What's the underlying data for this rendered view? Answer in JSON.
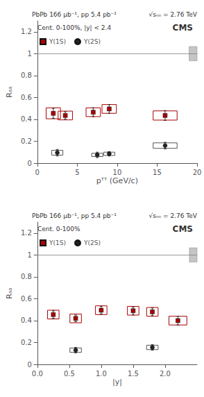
{
  "chart_data": [
    {
      "type": "scatter",
      "annotations": [
        "PbPb 166 μb⁻¹, pp 5.4 pb⁻¹",
        "√sₙₙ = 2.76 TeV",
        "CMS",
        "Cent. 0-100%, |y| < 2.4"
      ],
      "xlabel": "pᵀᵀ (GeV/c)",
      "ylabel": "Rₐₐ",
      "xlim": [
        0,
        20
      ],
      "ylim": [
        0,
        1.3
      ],
      "xticks": [
        0,
        5,
        10,
        15,
        20
      ],
      "yticks": [
        0,
        0.2,
        0.4,
        0.6,
        0.8,
        1,
        1.2
      ],
      "grid": false,
      "legend": "upper left",
      "hline": 1.0,
      "gray_box": {
        "x": 19.0,
        "y": 0.935,
        "width": 1.0,
        "height": 0.13
      },
      "series": [
        {
          "name": "Υ(1S)",
          "color": "#aa0000",
          "marker": "square",
          "x": [
            2.0,
            3.5,
            7.0,
            9.0,
            16.0
          ],
          "values": [
            0.455,
            0.435,
            0.465,
            0.495,
            0.435
          ],
          "yerr": [
            0.045,
            0.035,
            0.04,
            0.04,
            0.045
          ],
          "box_half_width": [
            0.9,
            0.9,
            0.9,
            0.9,
            1.5
          ],
          "box_half_height": [
            0.05,
            0.04,
            0.04,
            0.04,
            0.042
          ]
        },
        {
          "name": "Υ(2S)",
          "color": "#222222",
          "marker": "circle",
          "x": [
            2.5,
            7.5,
            9.0,
            16.0
          ],
          "values": [
            0.095,
            0.075,
            0.085,
            0.16
          ],
          "yerr": [
            0.03,
            0.025,
            0.02,
            0.03
          ],
          "box_half_width": [
            0.7,
            0.7,
            0.7,
            1.5
          ],
          "box_half_height": [
            0.022,
            0.015,
            0.015,
            0.025
          ]
        }
      ]
    },
    {
      "type": "scatter",
      "annotations": [
        "PbPb 166 μb⁻¹, pp 5.4 pb⁻¹",
        "√sₙₙ = 2.76 TeV",
        "CMS",
        "Cent. 0-100%"
      ],
      "xlabel": "|y|",
      "ylabel": "Rₐₐ",
      "xlim": [
        0,
        2.5
      ],
      "ylim": [
        0,
        1.3
      ],
      "xticks": [
        {
          "value": 0,
          "label": "0.0"
        },
        0.5,
        {
          "value": 1,
          "label": "1.0"
        },
        1.5,
        {
          "value": 2,
          "label": "2.0"
        }
      ],
      "yticks": [
        0,
        0.2,
        0.4,
        0.6,
        0.8,
        1,
        1.2
      ],
      "grid": false,
      "legend": "upper left",
      "hline": 1.0,
      "gray_box": {
        "x": 2.38,
        "y": 0.935,
        "width": 0.12,
        "height": 0.13
      },
      "series": [
        {
          "name": "Υ(1S)",
          "color": "#aa0000",
          "marker": "square",
          "x": [
            0.25,
            0.6,
            1.0,
            1.5,
            1.8,
            2.2
          ],
          "values": [
            0.455,
            0.42,
            0.495,
            0.49,
            0.48,
            0.4
          ],
          "yerr": [
            0.035,
            0.03,
            0.035,
            0.035,
            0.035,
            0.04
          ],
          "box_half_width": [
            0.09,
            0.09,
            0.09,
            0.09,
            0.09,
            0.14
          ],
          "box_half_height": [
            0.04,
            0.04,
            0.04,
            0.04,
            0.04,
            0.04
          ]
        },
        {
          "name": "Υ(2S)",
          "color": "#222222",
          "marker": "circle",
          "x": [
            0.6,
            1.8
          ],
          "values": [
            0.13,
            0.155
          ],
          "yerr": [
            0.025,
            0.025
          ],
          "box_half_width": [
            0.09,
            0.09
          ],
          "box_half_height": [
            0.02,
            0.02
          ]
        }
      ]
    }
  ]
}
